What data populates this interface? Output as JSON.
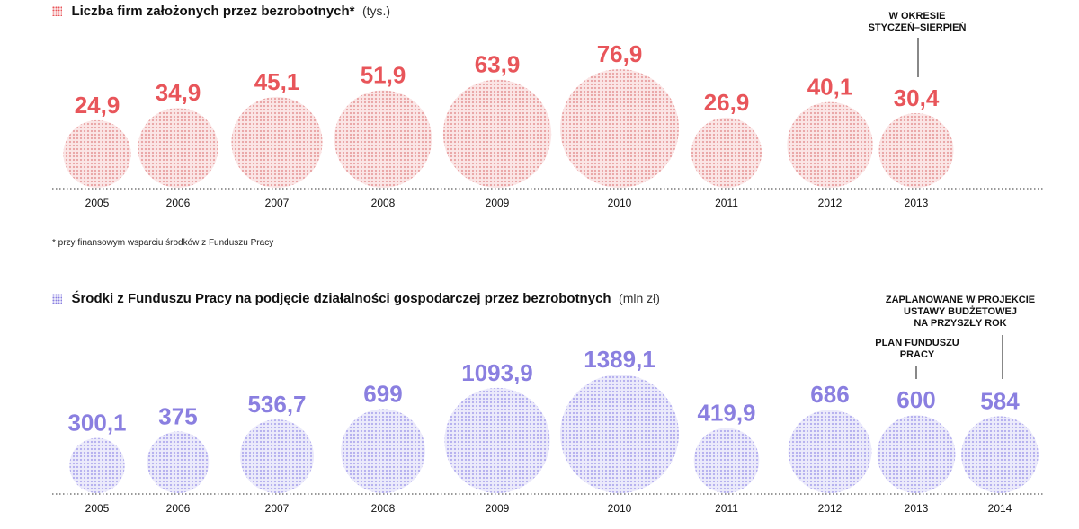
{
  "colors": {
    "red": "#e8555a",
    "red_fill": "#f3b6b5",
    "purple": "#8a7fe0",
    "purple_fill": "#c4c0f0"
  },
  "chart1": {
    "title": "Liczba firm założonych przez bezrobotnych*",
    "unit": "(tys.)",
    "footnote": "* przy finansowym wsparciu środków z Funduszu Pracy",
    "annotation": "W OKRESIE\nSTYCZEŃ–SIERPIEŃ"
  },
  "chart2": {
    "title": "Środki z Funduszu Pracy na podjęcie działalności gospodarczej przez bezrobotnych",
    "unit": "(mln zł)",
    "annotation_plan": "PLAN FUNDUSZU\nPRACY",
    "annotation_project": "ZAPLANOWANE W PROJEKCIE\nUSTAWY BUDŻETOWEJ\nNA PRZYSZŁY ROK"
  },
  "chart_data": [
    {
      "type": "bubble",
      "title": "Liczba firm założonych przez bezrobotnych*",
      "unit": "(tys.)",
      "categories": [
        "2005",
        "2006",
        "2007",
        "2008",
        "2009",
        "2010",
        "2011",
        "2012",
        "2013"
      ],
      "values": [
        24.9,
        34.9,
        45.1,
        51.9,
        63.9,
        76.9,
        26.9,
        40.1,
        30.4
      ],
      "labels": [
        "24,9",
        "34,9",
        "45,1",
        "51,9",
        "63,9",
        "76,9",
        "26,9",
        "40,1",
        "30,4"
      ]
    },
    {
      "type": "bubble",
      "title": "Środki z Funduszu Pracy na podjęcie działalności gospodarczej przez bezrobotnych",
      "unit": "(mln zł)",
      "categories": [
        "2005",
        "2006",
        "2007",
        "2008",
        "2009",
        "2010",
        "2011",
        "2012",
        "2013",
        "2014"
      ],
      "values": [
        300.1,
        375,
        536.7,
        699,
        1093.9,
        1389.1,
        419.9,
        686,
        600,
        584
      ],
      "labels": [
        "300,1",
        "375",
        "536,7",
        "699",
        "1093,9",
        "1389,1",
        "419,9",
        "686",
        "600",
        "584"
      ]
    }
  ]
}
